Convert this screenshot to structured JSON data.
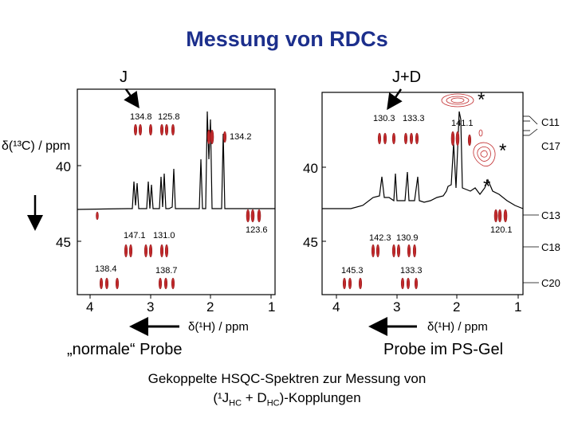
{
  "title": "Messung von RDCs",
  "left_panel": {
    "header": "J",
    "y_axis_label": "δ(¹³C) / ppm",
    "y_ticks": [
      "40",
      "45"
    ],
    "x_ticks": [
      "4",
      "3",
      "2",
      "1"
    ],
    "x_axis_label": "δ(¹H) / ppm",
    "peak_labels": [
      "134.8",
      "125.8",
      "134.2",
      "147.1",
      "131.0",
      "123.6",
      "138.4",
      "138.7"
    ],
    "caption": "„normale“ Probe"
  },
  "right_panel": {
    "header": "J+D",
    "y_ticks": [
      "40",
      "45"
    ],
    "x_ticks": [
      "4",
      "3",
      "2",
      "1"
    ],
    "x_axis_label": "δ(¹H) / ppm",
    "peak_labels": [
      "130.3",
      "133.3",
      "141.1",
      "142.3",
      "130.9",
      "120.1",
      "145.3",
      "133.3"
    ],
    "assignments": [
      "C11",
      "C17",
      "C13",
      "C18",
      "C20"
    ],
    "stars": [
      "*",
      "*",
      "*"
    ],
    "caption": "Probe im PS-Gel"
  },
  "footer": {
    "line1": "Gekoppelte HSQC-Spektren zur Messung von",
    "line2_prefix": "(¹J",
    "line2_sub1": "HC",
    "line2_mid": " + D",
    "line2_sub2": "HC",
    "line2_suffix": ")-Kopplungen"
  },
  "colors": {
    "title": "#1c2f8c",
    "contour": "#c0282a",
    "spectrum": "#000000"
  }
}
